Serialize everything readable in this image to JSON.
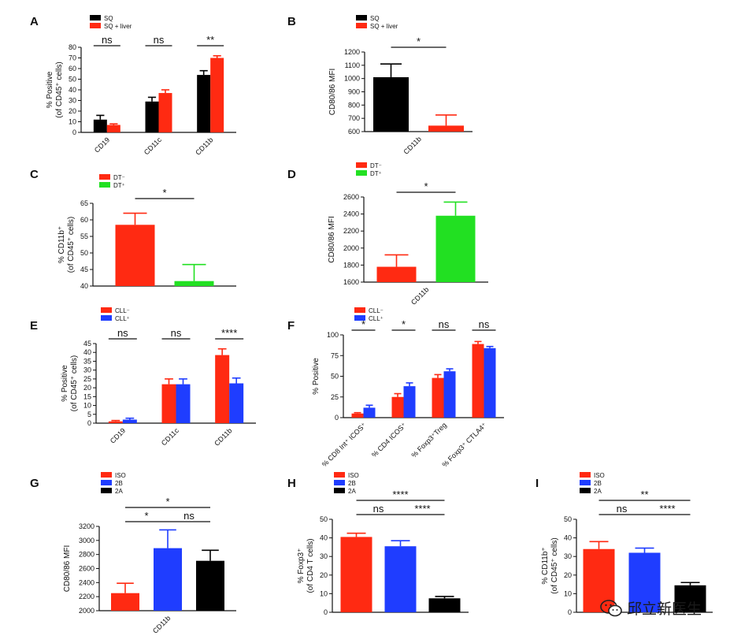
{
  "watermark": "邱立新医生",
  "chart_data": [
    {
      "id": "A",
      "type": "bar",
      "ylabel": "% Positive\n(of CD45⁺ cells)",
      "categories": [
        "CD19",
        "CD11c",
        "CD11b"
      ],
      "series": [
        {
          "name": "SQ",
          "color": "#000000",
          "values": [
            12,
            29,
            54
          ],
          "errors": [
            4,
            4,
            4
          ]
        },
        {
          "name": "SQ + liver",
          "color": "#ff2a12",
          "values": [
            7,
            37,
            70
          ],
          "errors": [
            1,
            3,
            2
          ]
        }
      ],
      "ylim": [
        0,
        80
      ],
      "yticks": [
        0,
        10,
        20,
        30,
        40,
        50,
        60,
        70,
        80
      ],
      "significance": [
        {
          "label": "ns",
          "category": 0
        },
        {
          "label": "ns",
          "category": 1
        },
        {
          "label": "**",
          "category": 2
        }
      ]
    },
    {
      "id": "B",
      "type": "bar",
      "ylabel": "CD80/86 MFI",
      "categories": [
        "CD11b"
      ],
      "series": [
        {
          "name": "SQ",
          "color": "#000000",
          "values": [
            1010
          ],
          "errors": [
            100
          ]
        },
        {
          "name": "SQ + liver",
          "color": "#ff2a12",
          "values": [
            645
          ],
          "errors": [
            80
          ]
        }
      ],
      "ylim": [
        600,
        1200
      ],
      "yticks": [
        600,
        700,
        800,
        900,
        1000,
        1100,
        1200
      ],
      "significance": [
        {
          "label": "*",
          "from": 0,
          "to": 1
        }
      ]
    },
    {
      "id": "C",
      "type": "bar",
      "ylabel": "% CD11b⁺\n(of CD45⁺ cells)",
      "categories": [
        ""
      ],
      "series": [
        {
          "name": "DT⁻",
          "color": "#ff2a12",
          "values": [
            58.5
          ],
          "errors": [
            3.5
          ]
        },
        {
          "name": "DT⁺",
          "color": "#22e022",
          "values": [
            41.5
          ],
          "errors": [
            5
          ]
        }
      ],
      "ylim": [
        40,
        65
      ],
      "yticks": [
        40,
        45,
        50,
        55,
        60,
        65
      ],
      "significance": [
        {
          "label": "*",
          "from": 0,
          "to": 1
        }
      ]
    },
    {
      "id": "D",
      "type": "bar",
      "ylabel": "CD80/86 MFI",
      "categories": [
        "CD11b"
      ],
      "series": [
        {
          "name": "DT⁻",
          "color": "#ff2a12",
          "values": [
            1780
          ],
          "errors": [
            140
          ]
        },
        {
          "name": "DT⁺",
          "color": "#22e022",
          "values": [
            2380
          ],
          "errors": [
            160
          ]
        }
      ],
      "ylim": [
        1600,
        2600
      ],
      "yticks": [
        1600,
        1800,
        2000,
        2200,
        2400,
        2600
      ],
      "significance": [
        {
          "label": "*",
          "from": 0,
          "to": 1
        }
      ]
    },
    {
      "id": "E",
      "type": "bar",
      "ylabel": "% Positive\n(of CD45⁺ cells)",
      "categories": [
        "CD19",
        "CD11c",
        "CD11b"
      ],
      "series": [
        {
          "name": "CLL⁻",
          "color": "#ff2a12",
          "values": [
            1,
            22,
            38.5
          ],
          "errors": [
            0.5,
            3,
            3.5
          ]
        },
        {
          "name": "CLL⁺",
          "color": "#1f3dff",
          "values": [
            2,
            22,
            22.5
          ],
          "errors": [
            0.8,
            3,
            3
          ]
        }
      ],
      "ylim": [
        0,
        45
      ],
      "yticks": [
        0,
        5,
        10,
        15,
        20,
        25,
        30,
        35,
        40,
        45
      ],
      "significance": [
        {
          "label": "ns",
          "category": 0
        },
        {
          "label": "ns",
          "category": 1
        },
        {
          "label": "****",
          "category": 2
        }
      ]
    },
    {
      "id": "F",
      "type": "bar",
      "ylabel": "% Positive",
      "categories": [
        "% CD8 Int⁺ ICOS⁺",
        "% CD4 ICOS⁺",
        "% Foxp3⁺Treg",
        "% Foxp3⁺ CTLA4⁺"
      ],
      "series": [
        {
          "name": "CLL⁻",
          "color": "#ff2a12",
          "values": [
            5,
            25,
            48,
            89
          ],
          "errors": [
            1,
            4,
            4,
            3
          ]
        },
        {
          "name": "CLL⁺",
          "color": "#1f3dff",
          "values": [
            12,
            38,
            56,
            84
          ],
          "errors": [
            3,
            4,
            3,
            2
          ]
        }
      ],
      "ylim": [
        0,
        100
      ],
      "yticks": [
        0,
        25,
        50,
        75,
        100
      ],
      "significance": [
        {
          "label": "*",
          "category": 0
        },
        {
          "label": "*",
          "category": 1
        },
        {
          "label": "ns",
          "category": 2
        },
        {
          "label": "ns",
          "category": 3
        }
      ]
    },
    {
      "id": "G",
      "type": "bar",
      "ylabel": "CD80/86 MFI",
      "categories": [
        "CD11b"
      ],
      "series": [
        {
          "name": "ISO",
          "color": "#ff2a12",
          "values": [
            2250
          ],
          "errors": [
            140
          ]
        },
        {
          "name": "2B",
          "color": "#1f3dff",
          "values": [
            2890
          ],
          "errors": [
            260
          ]
        },
        {
          "name": "2A",
          "color": "#000000",
          "values": [
            2710
          ],
          "errors": [
            150
          ]
        }
      ],
      "ylim": [
        2000,
        3200
      ],
      "yticks": [
        2000,
        2200,
        2400,
        2600,
        2800,
        3000,
        3200
      ],
      "significance": [
        {
          "label": "*",
          "from": 0,
          "to": 2,
          "level": 2
        },
        {
          "label": "*",
          "from": 0,
          "to": 1,
          "level": 1
        },
        {
          "label": "ns",
          "from": 1,
          "to": 2,
          "level": 1
        }
      ]
    },
    {
      "id": "H",
      "type": "bar",
      "ylabel": "% Foxp3⁺\n(of CD4 T cells)",
      "categories": [
        ""
      ],
      "series": [
        {
          "name": "ISO",
          "color": "#ff2a12",
          "values": [
            40.5
          ],
          "errors": [
            2
          ]
        },
        {
          "name": "2B",
          "color": "#1f3dff",
          "values": [
            35.5
          ],
          "errors": [
            3
          ]
        },
        {
          "name": "2A",
          "color": "#000000",
          "values": [
            7.5
          ],
          "errors": [
            1
          ]
        }
      ],
      "ylim": [
        0,
        50
      ],
      "yticks": [
        0,
        10,
        20,
        30,
        40,
        50
      ],
      "significance": [
        {
          "label": "****",
          "from": 0,
          "to": 2,
          "level": 2
        },
        {
          "label": "ns",
          "from": 0,
          "to": 1,
          "level": 1
        },
        {
          "label": "****",
          "from": 1,
          "to": 2,
          "level": 1
        }
      ]
    },
    {
      "id": "I",
      "type": "bar",
      "ylabel": "% CD11b⁺\n(of CD45⁺ cells)",
      "categories": [
        ""
      ],
      "series": [
        {
          "name": "ISO",
          "color": "#ff2a12",
          "values": [
            34
          ],
          "errors": [
            4
          ]
        },
        {
          "name": "2B",
          "color": "#1f3dff",
          "values": [
            32
          ],
          "errors": [
            2.5
          ]
        },
        {
          "name": "2A",
          "color": "#000000",
          "values": [
            14.5
          ],
          "errors": [
            1.5
          ]
        }
      ],
      "ylim": [
        0,
        50
      ],
      "yticks": [
        0,
        10,
        20,
        30,
        40,
        50
      ],
      "significance": [
        {
          "label": "**",
          "from": 0,
          "to": 2,
          "level": 2
        },
        {
          "label": "ns",
          "from": 0,
          "to": 1,
          "level": 1
        },
        {
          "label": "****",
          "from": 1,
          "to": 2,
          "level": 1
        }
      ]
    }
  ]
}
